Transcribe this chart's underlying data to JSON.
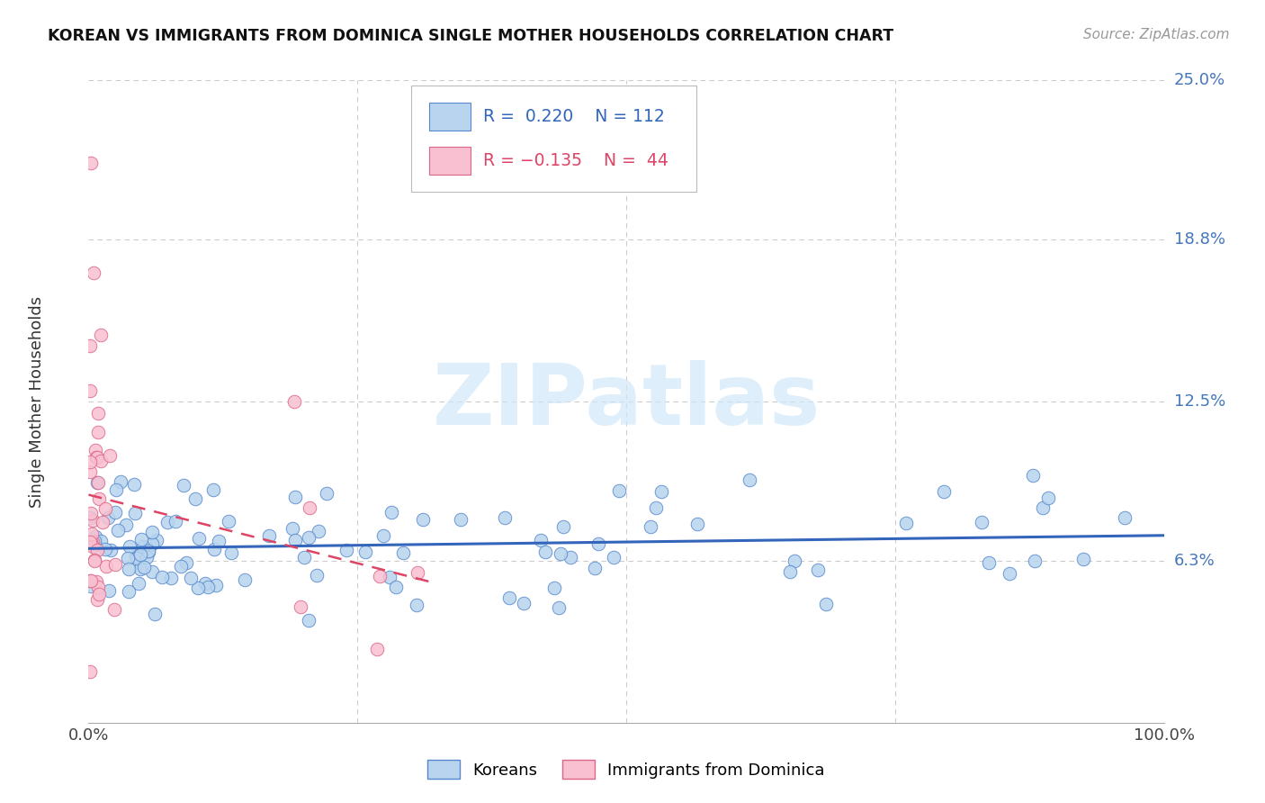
{
  "title": "KOREAN VS IMMIGRANTS FROM DOMINICA SINGLE MOTHER HOUSEHOLDS CORRELATION CHART",
  "source": "Source: ZipAtlas.com",
  "ylabel": "Single Mother Households",
  "xlim": [
    0,
    1.0
  ],
  "ylim": [
    0,
    0.25
  ],
  "ytick_vals": [
    0.063,
    0.125,
    0.188,
    0.25
  ],
  "ytick_labels": [
    "6.3%",
    "12.5%",
    "18.8%",
    "25.0%"
  ],
  "xtick_vals": [
    0.0,
    0.25,
    0.5,
    0.75,
    1.0
  ],
  "xtick_labels": [
    "0.0%",
    "",
    "",
    "",
    "100.0%"
  ],
  "background_color": "#ffffff",
  "grid_color": "#cccccc",
  "korean_face": "#b8d4ee",
  "korean_edge": "#5588cc",
  "dominica_face": "#f8c0d0",
  "dominica_edge": "#dd6688",
  "trend_korean_color": "#3366bb",
  "trend_dominica_color": "#dd4466",
  "watermark_color": "#d0e8f8",
  "watermark_text": "ZIPatlas",
  "legend_R_korean": "R =  0.220",
  "legend_N_korean": "N = 112",
  "legend_R_dominica": "R = −0.135",
  "legend_N_dominica": "N =  44"
}
